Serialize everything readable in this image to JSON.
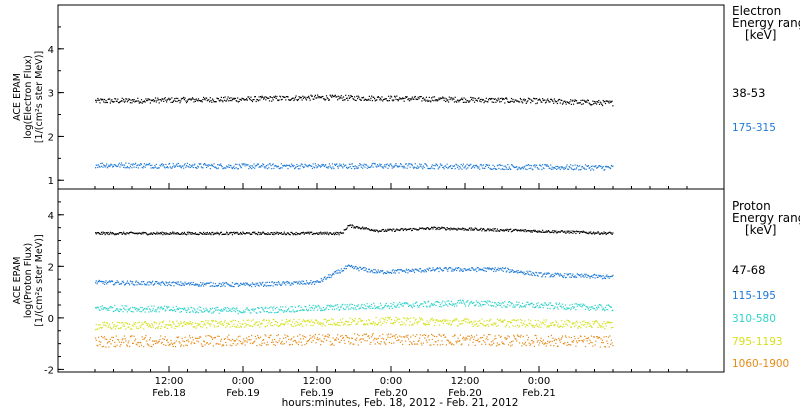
{
  "chart_data": [
    {
      "type": "scatter",
      "panel": "electron",
      "ylabel_lines": [
        "ACE EPAM",
        "log(Electron Flux)",
        "[1/(cm²s ster MeV)]"
      ],
      "ylim": [
        0.8,
        5.0
      ],
      "yticks": [
        1,
        2,
        3,
        4
      ],
      "legend_title": [
        "Electron",
        "Energy range",
        "[keV]"
      ],
      "series": [
        {
          "name": "38-53",
          "color": "#000000",
          "base": 2.82,
          "jitter": 0.06,
          "trend": [
            [
              0,
              2.82
            ],
            [
              24,
              2.86
            ],
            [
              36,
              2.9
            ],
            [
              48,
              2.88
            ],
            [
              72,
              2.82
            ],
            [
              84,
              2.77
            ]
          ]
        },
        {
          "name": "175-315",
          "color": "#1f7ad6",
          "base": 1.33,
          "jitter": 0.06,
          "trend": [
            [
              0,
              1.36
            ],
            [
              24,
              1.33
            ],
            [
              48,
              1.34
            ],
            [
              72,
              1.31
            ],
            [
              84,
              1.3
            ]
          ]
        }
      ]
    },
    {
      "type": "scatter",
      "panel": "proton",
      "ylabel_lines": [
        "ACE EPAM",
        "log(Proton Flux)",
        "[1/(cm²s ster MeV)]"
      ],
      "ylim": [
        -2.1,
        5.0
      ],
      "yticks": [
        -2,
        0,
        2,
        4
      ],
      "legend_title": [
        "Proton",
        "Energy range",
        "[keV]"
      ],
      "series": [
        {
          "name": "47-68",
          "color": "#000000",
          "base": 3.3,
          "jitter": 0.05,
          "trend": [
            [
              0,
              3.3
            ],
            [
              40,
              3.3
            ],
            [
              41,
              3.6
            ],
            [
              46,
              3.4
            ],
            [
              55,
              3.5
            ],
            [
              70,
              3.4
            ],
            [
              84,
              3.3
            ]
          ]
        },
        {
          "name": "115-195",
          "color": "#1f7ad6",
          "base": 1.4,
          "jitter": 0.08,
          "trend": [
            [
              0,
              1.4
            ],
            [
              24,
              1.3
            ],
            [
              36,
              1.4
            ],
            [
              41,
              2.0
            ],
            [
              46,
              1.8
            ],
            [
              56,
              1.9
            ],
            [
              66,
              1.9
            ],
            [
              72,
              1.7
            ],
            [
              84,
              1.6
            ]
          ]
        },
        {
          "name": "310-580",
          "color": "#2fd3c8",
          "base": 0.35,
          "jitter": 0.12,
          "trend": [
            [
              0,
              0.4
            ],
            [
              24,
              0.3
            ],
            [
              48,
              0.5
            ],
            [
              60,
              0.6
            ],
            [
              72,
              0.5
            ],
            [
              84,
              0.4
            ]
          ]
        },
        {
          "name": "795-1193",
          "color": "#d4e11a",
          "base": -0.25,
          "jitter": 0.15,
          "trend": [
            [
              0,
              -0.3
            ],
            [
              48,
              -0.1
            ],
            [
              84,
              -0.25
            ]
          ]
        },
        {
          "name": "1060-1900",
          "color": "#e58a16",
          "base": -0.9,
          "jitter": 0.22,
          "trend": [
            [
              0,
              -0.9
            ],
            [
              48,
              -0.8
            ],
            [
              84,
              -0.9
            ]
          ]
        }
      ]
    }
  ],
  "x_axis": {
    "xlim_hours": [
      -6,
      102
    ],
    "ticks": [
      {
        "hour": 12,
        "time": "12:00",
        "date": "Feb.18"
      },
      {
        "hour": 24,
        "time": "0:00",
        "date": "Feb.19"
      },
      {
        "hour": 36,
        "time": "12:00",
        "date": "Feb.19"
      },
      {
        "hour": 48,
        "time": "0:00",
        "date": "Feb.20"
      },
      {
        "hour": 60,
        "time": "12:00",
        "date": "Feb.20"
      },
      {
        "hour": 72,
        "time": "0:00",
        "date": "Feb.21"
      }
    ],
    "xlabel": "hours:minutes, Feb. 18, 2012 - Feb. 21, 2012"
  },
  "data_range_hours": [
    0,
    84
  ]
}
